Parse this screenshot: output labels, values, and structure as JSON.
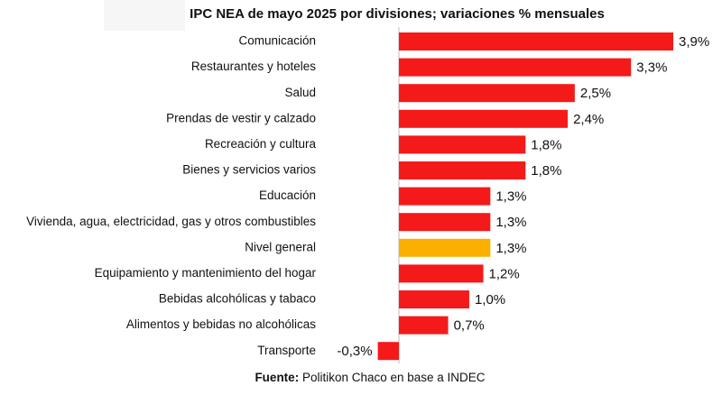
{
  "chart_data": {
    "type": "barh",
    "title": "IPC NEA de mayo 2025 por divisiones; variaciones % mensuales",
    "categories": [
      "Comunicación",
      "Restaurantes y hoteles",
      "Salud",
      "Prendas de vestir y calzado",
      "Recreación y cultura",
      "Bienes y servicios varios",
      "Educación",
      "Vivienda, agua, electricidad, gas y otros combustibles",
      "Nivel general",
      "Equipamiento y mantenimiento del hogar",
      "Bebidas alcohólicas y tabaco",
      "Alimentos y bebidas no alcohólicas",
      "Transporte"
    ],
    "values": [
      3.9,
      3.3,
      2.5,
      2.4,
      1.8,
      1.8,
      1.3,
      1.3,
      1.3,
      1.2,
      1.0,
      0.7,
      -0.3
    ],
    "value_labels": [
      "3,9%",
      "3,3%",
      "2,5%",
      "2,4%",
      "1,8%",
      "1,8%",
      "1,3%",
      "1,3%",
      "1,3%",
      "1,2%",
      "1,0%",
      "0,7%",
      "-0,3%"
    ],
    "colors": [
      "#f51a1a",
      "#f51a1a",
      "#f51a1a",
      "#f51a1a",
      "#f51a1a",
      "#f51a1a",
      "#f51a1a",
      "#f51a1a",
      "#fbaf00",
      "#f51a1a",
      "#f51a1a",
      "#f51a1a",
      "#f51a1a"
    ],
    "source_label": "Fuente:",
    "source_text": "Politikon Chaco en base a INDEC"
  }
}
